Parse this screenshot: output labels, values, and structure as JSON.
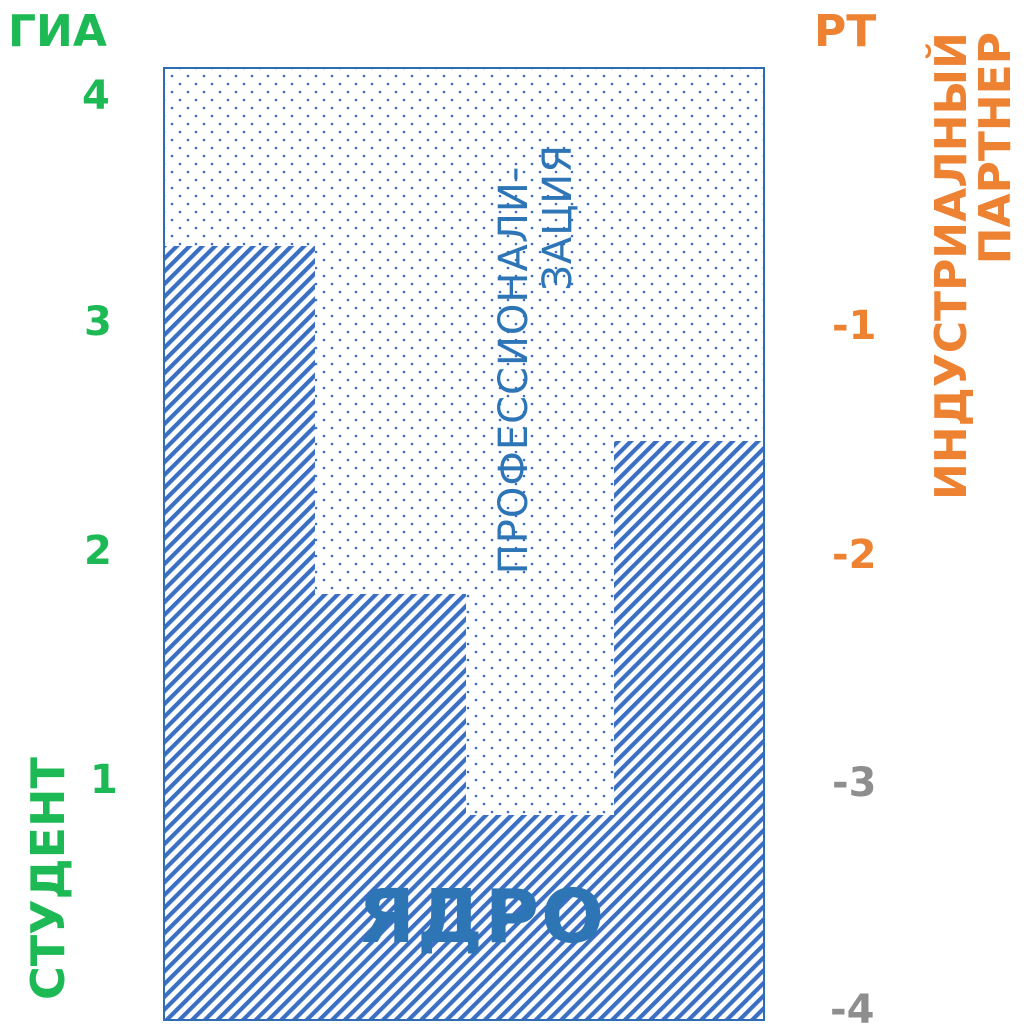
{
  "left_axis": {
    "title": "ГИА",
    "ticks": [
      "4",
      "3",
      "2",
      "1"
    ],
    "vertical_label": "СТУДЕНТ"
  },
  "right_axis": {
    "title": "РТ",
    "ticks": [
      "-1",
      "-2",
      "-3",
      "-4"
    ],
    "vertical_label_line1": "ИНДУСТРИАЛНЫЙ",
    "vertical_label_line2": "ПАРТНЕР"
  },
  "blocks": {
    "professionalization_line1": "ПРОФЕССИОНАЛИ-",
    "professionalization_line2": "ЗАЦИЯ",
    "core": "ЯДРО"
  },
  "colors": {
    "green": "#1db954",
    "orange": "#ee8233",
    "grey": "#8e8e8e",
    "blue": "#2e75b6",
    "hatch": "#3a6fc4"
  }
}
